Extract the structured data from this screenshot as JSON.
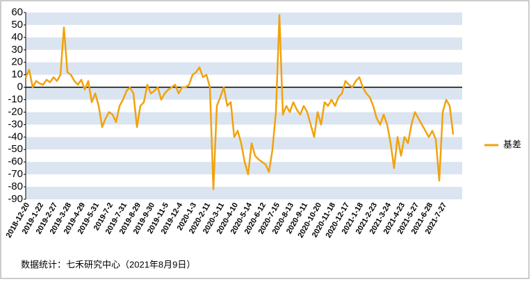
{
  "chart_data": {
    "type": "line",
    "categories": [
      "2018-12-20",
      null,
      null,
      null,
      "2019-1-22",
      null,
      null,
      null,
      "2019-2-27",
      null,
      null,
      null,
      "2019-3-28",
      null,
      null,
      null,
      "2019-4-29",
      null,
      null,
      null,
      "2019-5-31",
      null,
      null,
      null,
      "2019-7-2",
      null,
      null,
      null,
      "2019-7-31",
      null,
      null,
      null,
      "2019-8-29",
      null,
      null,
      null,
      "2019-9-30",
      null,
      null,
      null,
      "2019-11-5",
      null,
      null,
      null,
      "2019-12-4",
      null,
      null,
      null,
      "2020-1-3",
      null,
      null,
      null,
      "2020-2-11",
      null,
      null,
      null,
      "2020-3-11",
      null,
      null,
      null,
      "2020-4-10",
      null,
      null,
      null,
      "2020-5-14",
      null,
      null,
      null,
      "2020-6-12",
      null,
      null,
      null,
      "2020-7-15",
      null,
      null,
      null,
      "2020-8-13",
      null,
      null,
      null,
      "2020-9-11",
      null,
      null,
      null,
      "2020-10-20",
      null,
      null,
      null,
      "2020-11-18",
      null,
      null,
      null,
      "2020-12-17",
      null,
      null,
      null,
      "2021-1-18",
      null,
      null,
      null,
      "2021-2-23",
      null,
      null,
      null,
      "2021-3-24",
      null,
      null,
      null,
      "2021-4-23",
      null,
      null,
      null,
      "2021-5-27",
      null,
      null,
      null,
      "2021-6-28",
      null,
      null,
      null,
      "2021-7-27",
      null,
      null,
      null
    ],
    "series": [
      {
        "name": "基差",
        "color": "#f2a20c",
        "values": [
          8,
          14,
          0,
          5,
          3,
          2,
          6,
          4,
          8,
          5,
          10,
          48,
          12,
          10,
          5,
          2,
          6,
          -2,
          5,
          -12,
          -5,
          -15,
          -32,
          -25,
          -20,
          -22,
          -28,
          -15,
          -10,
          -3,
          0,
          -5,
          -32,
          -15,
          -12,
          2,
          -5,
          -3,
          0,
          -10,
          -5,
          -2,
          0,
          2,
          -5,
          0,
          0,
          2,
          10,
          12,
          16,
          8,
          10,
          0,
          -82,
          -15,
          -8,
          0,
          -15,
          -12,
          -40,
          -35,
          -45,
          -60,
          -70,
          -45,
          -55,
          -58,
          -60,
          -62,
          -68,
          -50,
          -20,
          58,
          -22,
          -15,
          -20,
          -12,
          -18,
          -22,
          -15,
          -20,
          -30,
          -40,
          -20,
          -30,
          -12,
          -15,
          -10,
          -15,
          -8,
          -5,
          5,
          2,
          0,
          5,
          8,
          0,
          -5,
          -8,
          -15,
          -25,
          -30,
          -22,
          -30,
          -45,
          -65,
          -40,
          -55,
          -40,
          -45,
          -30,
          -20,
          -25,
          -30,
          -35,
          -40,
          -35,
          -42,
          -75,
          -20,
          -10,
          -15,
          -38
        ]
      }
    ],
    "ylim": [
      -90,
      60
    ],
    "yticks": [
      -90,
      -80,
      -70,
      -60,
      -50,
      -40,
      -30,
      -20,
      -10,
      0,
      10,
      20,
      30,
      40,
      50,
      60
    ],
    "grid": true,
    "legend": "right",
    "source": "数据统计：七禾研究中心（2021年8月9日）"
  }
}
